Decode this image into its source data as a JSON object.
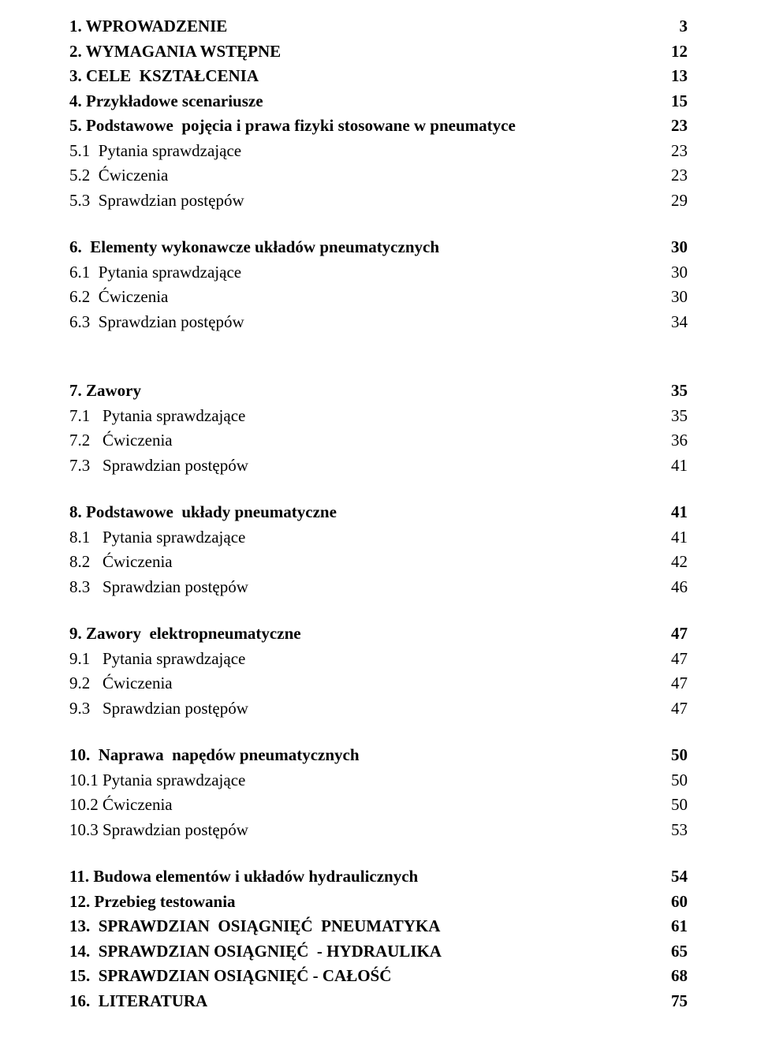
{
  "font_family": "Times New Roman",
  "font_size_pt": 16,
  "text_color": "#000000",
  "background_color": "#ffffff",
  "line_height": 1.5,
  "toc": [
    {
      "type": "row",
      "bold": true,
      "title": "1. WPROWADZENIE",
      "page": "3"
    },
    {
      "type": "row",
      "bold": true,
      "title": "2. WYMAGANIA WSTĘPNE",
      "page": "12"
    },
    {
      "type": "row",
      "bold": true,
      "title": "3. CELE  KSZTAŁCENIA",
      "page": "13"
    },
    {
      "type": "row",
      "bold": true,
      "title": "4. Przykładowe scenariusze",
      "page": "15"
    },
    {
      "type": "row",
      "bold": true,
      "title": "5. Podstawowe  pojęcia i prawa fizyki stosowane w pneumatyce",
      "page": "23"
    },
    {
      "type": "row",
      "bold": false,
      "title": "5.1  Pytania sprawdzające",
      "page": "23"
    },
    {
      "type": "row",
      "bold": false,
      "title": "5.2  Ćwiczenia",
      "page": "23"
    },
    {
      "type": "row",
      "bold": false,
      "title": "5.3  Sprawdzian postępów",
      "page": "29"
    },
    {
      "type": "gap"
    },
    {
      "type": "row",
      "bold": true,
      "title": "6.  Elementy wykonawcze układów pneumatycznych",
      "page": "30"
    },
    {
      "type": "row",
      "bold": false,
      "title": "6.1  Pytania sprawdzające",
      "page": "30"
    },
    {
      "type": "row",
      "bold": false,
      "title": "6.2  Ćwiczenia",
      "page": "30"
    },
    {
      "type": "row",
      "bold": false,
      "title": "6.3  Sprawdzian postępów",
      "page": "34"
    },
    {
      "type": "gap"
    },
    {
      "type": "gap"
    },
    {
      "type": "row",
      "bold": true,
      "title": "7. Zawory",
      "page": "35"
    },
    {
      "type": "row",
      "bold": false,
      "title": "7.1   Pytania sprawdzające",
      "page": "35"
    },
    {
      "type": "row",
      "bold": false,
      "title": "7.2   Ćwiczenia",
      "page": "36"
    },
    {
      "type": "row",
      "bold": false,
      "title": "7.3   Sprawdzian postępów",
      "page": "41"
    },
    {
      "type": "gap"
    },
    {
      "type": "row",
      "bold": true,
      "title": "8. Podstawowe  układy pneumatyczne",
      "page": "41"
    },
    {
      "type": "row",
      "bold": false,
      "title": "8.1   Pytania sprawdzające",
      "page": "41"
    },
    {
      "type": "row",
      "bold": false,
      "title": "8.2   Ćwiczenia",
      "page": "42"
    },
    {
      "type": "row",
      "bold": false,
      "title": "8.3   Sprawdzian postępów",
      "page": "46"
    },
    {
      "type": "gap"
    },
    {
      "type": "row",
      "bold": true,
      "title": "9. Zawory  elektropneumatyczne",
      "page": "47"
    },
    {
      "type": "row",
      "bold": false,
      "title": "9.1   Pytania sprawdzające",
      "page": "47"
    },
    {
      "type": "row",
      "bold": false,
      "title": "9.2   Ćwiczenia",
      "page": "47"
    },
    {
      "type": "row",
      "bold": false,
      "title": "9.3   Sprawdzian postępów",
      "page": "47"
    },
    {
      "type": "gap"
    },
    {
      "type": "row",
      "bold": true,
      "title": "10.  Naprawa  napędów pneumatycznych",
      "page": "50"
    },
    {
      "type": "row",
      "bold": false,
      "title": "10.1 Pytania sprawdzające",
      "page": "50"
    },
    {
      "type": "row",
      "bold": false,
      "title": "10.2 Ćwiczenia",
      "page": "50"
    },
    {
      "type": "row",
      "bold": false,
      "title": "10.3 Sprawdzian postępów",
      "page": "53"
    },
    {
      "type": "gap"
    },
    {
      "type": "row",
      "bold": true,
      "title": "11. Budowa elementów i układów hydraulicznych",
      "page": "54"
    },
    {
      "type": "row",
      "bold": true,
      "title": "12. Przebieg testowania",
      "page": "60"
    },
    {
      "type": "row",
      "bold": true,
      "title": "13.  SPRAWDZIAN  OSIĄGNIĘĆ  PNEUMATYKA",
      "page": "61"
    },
    {
      "type": "row",
      "bold": true,
      "title": "14.  SPRAWDZIAN OSIĄGNIĘĆ  - HYDRAULIKA",
      "page": "65"
    },
    {
      "type": "row",
      "bold": true,
      "title": "15.  SPRAWDZIAN OSIĄGNIĘĆ - CAŁOŚĆ",
      "page": "68"
    },
    {
      "type": "row",
      "bold": true,
      "title": "16.  LITERATURA",
      "page": "75"
    }
  ]
}
